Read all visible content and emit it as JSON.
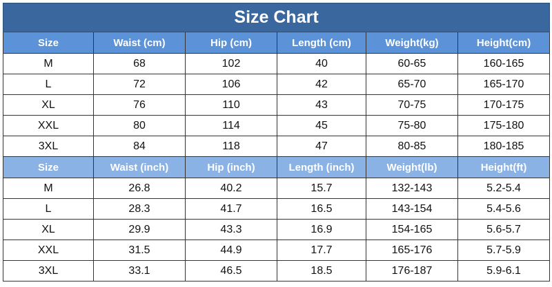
{
  "title": "Size Chart",
  "colors": {
    "title_bg": "#3b679f",
    "header_cm_bg": "#5c93d8",
    "header_inch_bg": "#8ab2e4"
  },
  "cm_table": {
    "headers": [
      "Size",
      "Waist  (cm)",
      "Hip  (cm)",
      "Length  (cm)",
      "Weight(kg)",
      "Height(cm)"
    ],
    "rows": [
      [
        "M",
        "68",
        "102",
        "40",
        "60-65",
        "160-165"
      ],
      [
        "L",
        "72",
        "106",
        "42",
        "65-70",
        "165-170"
      ],
      [
        "XL",
        "76",
        "110",
        "43",
        "70-75",
        "170-175"
      ],
      [
        "XXL",
        "80",
        "114",
        "45",
        "75-80",
        "175-180"
      ],
      [
        "3XL",
        "84",
        "118",
        "47",
        "80-85",
        "180-185"
      ]
    ]
  },
  "inch_table": {
    "headers": [
      "Size",
      "Waist (inch)",
      "Hip (inch)",
      "Length (inch)",
      "Weight(lb)",
      "Height(ft)"
    ],
    "rows": [
      [
        "M",
        "26.8",
        "40.2",
        "15.7",
        "132-143",
        "5.2-5.4"
      ],
      [
        "L",
        "28.3",
        "41.7",
        "16.5",
        "143-154",
        "5.4-5.6"
      ],
      [
        "XL",
        "29.9",
        "43.3",
        "16.9",
        "154-165",
        "5.6-5.7"
      ],
      [
        "XXL",
        "31.5",
        "44.9",
        "17.7",
        "165-176",
        "5.7-5.9"
      ],
      [
        "3XL",
        "33.1",
        "46.5",
        "18.5",
        "176-187",
        "5.9-6.1"
      ]
    ]
  }
}
